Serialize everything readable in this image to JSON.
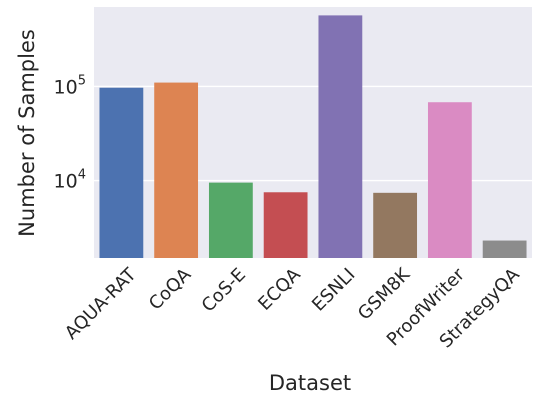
{
  "chart_data": {
    "type": "bar",
    "xlabel": "Dataset",
    "ylabel": "Number of Samples",
    "yscale": "log",
    "ylim": [
      1500,
      700000
    ],
    "grid": true,
    "background_color": "#eaeaf2",
    "grid_color": "#ffffff",
    "categories": [
      "AQUA-RAT",
      "CoQA",
      "CoS-E",
      "ECQA",
      "ESNLI",
      "GSM8K",
      "ProofWriter",
      "StrategyQA"
    ],
    "values": [
      97000,
      110000,
      9500,
      7500,
      570000,
      7400,
      68000,
      2300
    ],
    "colors": [
      "#4c72b0",
      "#dd8452",
      "#55a868",
      "#c44e52",
      "#8172b3",
      "#937860",
      "#da8bc3",
      "#8c8c8c"
    ],
    "ytick_labels": [
      {
        "value": 10000,
        "base": "10",
        "exp": "4"
      },
      {
        "value": 100000,
        "base": "10",
        "exp": "5"
      }
    ]
  }
}
